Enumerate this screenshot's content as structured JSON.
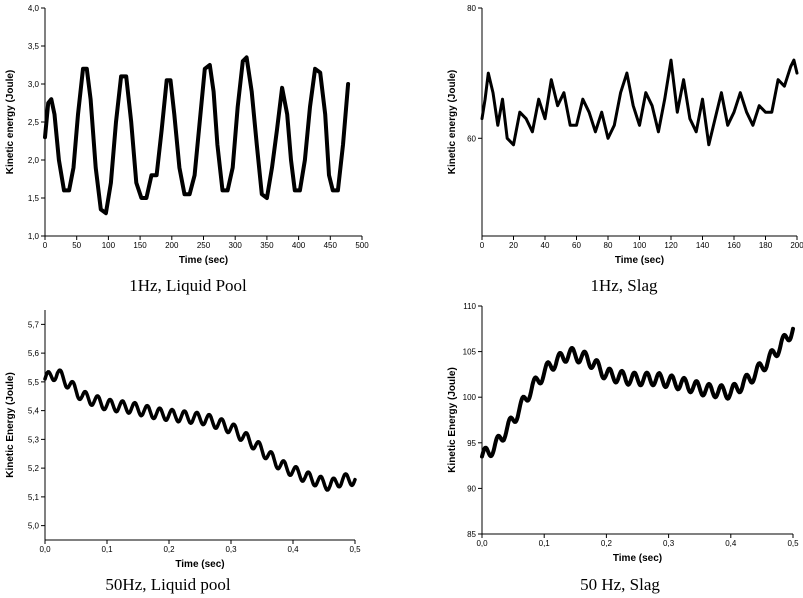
{
  "chart_data": [
    {
      "type": "line",
      "caption": "1Hz,  Liquid Pool",
      "xlabel": "Time (sec)",
      "ylabel": "Kinetic energy (Joule)",
      "xlim": [
        0,
        500
      ],
      "ylim": [
        1.0,
        4.0
      ],
      "xticks": [
        0,
        50,
        100,
        150,
        200,
        250,
        300,
        350,
        400,
        450,
        500
      ],
      "xtick_labels": [
        "0",
        "50",
        "100",
        "150",
        "200",
        "250",
        "300",
        "350",
        "400",
        "450",
        "500"
      ],
      "yticks": [
        1.0,
        1.5,
        2.0,
        2.5,
        3.0,
        3.5,
        4.0
      ],
      "ytick_labels": [
        "1,0",
        "1,5",
        "2,0",
        "2,5",
        "3,0",
        "3,5",
        "4,0"
      ],
      "line_width": 4,
      "x": [
        0,
        5,
        10,
        15,
        22,
        30,
        38,
        45,
        52,
        60,
        66,
        72,
        80,
        88,
        96,
        104,
        112,
        120,
        128,
        136,
        144,
        152,
        160,
        168,
        176,
        184,
        192,
        198,
        204,
        212,
        220,
        228,
        236,
        244,
        252,
        260,
        266,
        272,
        280,
        288,
        296,
        304,
        312,
        318,
        326,
        334,
        342,
        350,
        358,
        366,
        374,
        382,
        388,
        394,
        402,
        410,
        418,
        426,
        434,
        442,
        448,
        454,
        462,
        470,
        478
      ],
      "y": [
        2.3,
        2.75,
        2.8,
        2.6,
        2.0,
        1.6,
        1.6,
        1.9,
        2.6,
        3.2,
        3.2,
        2.8,
        1.9,
        1.35,
        1.3,
        1.7,
        2.5,
        3.1,
        3.1,
        2.5,
        1.7,
        1.5,
        1.5,
        1.8,
        1.8,
        2.4,
        3.05,
        3.05,
        2.6,
        1.9,
        1.55,
        1.55,
        1.8,
        2.5,
        3.2,
        3.25,
        2.9,
        2.2,
        1.6,
        1.6,
        1.9,
        2.7,
        3.3,
        3.35,
        2.9,
        2.2,
        1.55,
        1.5,
        1.9,
        2.4,
        2.95,
        2.6,
        2.0,
        1.6,
        1.6,
        2.0,
        2.7,
        3.2,
        3.15,
        2.6,
        1.8,
        1.6,
        1.6,
        2.2,
        3.0
      ]
    },
    {
      "type": "line",
      "caption": "1Hz, Slag",
      "xlabel": "Time (sec)",
      "ylabel": "Kinetic energy (Joule)",
      "xlim": [
        0,
        200
      ],
      "ylim": [
        45,
        80
      ],
      "xticks": [
        0,
        20,
        40,
        60,
        80,
        100,
        120,
        140,
        160,
        180,
        200
      ],
      "xtick_labels": [
        "0",
        "20",
        "40",
        "60",
        "80",
        "100",
        "120",
        "140",
        "160",
        "180",
        "200"
      ],
      "yticks": [
        60,
        80
      ],
      "ytick_labels": [
        "60",
        "80"
      ],
      "line_width": 3,
      "x": [
        0,
        2,
        4,
        7,
        10,
        13,
        16,
        20,
        24,
        28,
        32,
        36,
        40,
        44,
        48,
        52,
        56,
        60,
        64,
        68,
        72,
        76,
        80,
        84,
        88,
        92,
        96,
        100,
        104,
        108,
        112,
        116,
        120,
        124,
        128,
        132,
        136,
        140,
        144,
        148,
        152,
        156,
        160,
        164,
        168,
        172,
        176,
        180,
        184,
        188,
        192,
        196,
        198,
        200
      ],
      "y": [
        63,
        66,
        70,
        67,
        62,
        66,
        60,
        59,
        64,
        63,
        61,
        66,
        63,
        69,
        65,
        67,
        62,
        62,
        66,
        64,
        61,
        64,
        60,
        62,
        67,
        70,
        65,
        62,
        67,
        65,
        61,
        66,
        72,
        64,
        69,
        63,
        61,
        66,
        59,
        63,
        67,
        62,
        64,
        67,
        64,
        62,
        65,
        64,
        64,
        69,
        68,
        71,
        72,
        70
      ]
    },
    {
      "type": "line",
      "caption": "50Hz, Liquid pool",
      "xlabel": "Time (sec)",
      "ylabel": "Kinetic Energy (Joule)",
      "xlim": [
        0.0,
        0.5
      ],
      "ylim": [
        4.95,
        5.75
      ],
      "xticks": [
        0.0,
        0.1,
        0.2,
        0.3,
        0.4,
        0.5
      ],
      "xtick_labels": [
        "0,0",
        "0,1",
        "0,2",
        "0,3",
        "0,4",
        "0,5"
      ],
      "yticks": [
        5.0,
        5.1,
        5.2,
        5.3,
        5.4,
        5.5,
        5.6,
        5.7
      ],
      "ytick_labels": [
        "5,0",
        "5,1",
        "5,2",
        "5,3",
        "5,4",
        "5,5",
        "5,6",
        "5,7"
      ],
      "line_width": 3.5,
      "x": [
        0.0,
        0.02,
        0.06,
        0.1,
        0.14,
        0.18,
        0.22,
        0.26,
        0.3,
        0.34,
        0.38,
        0.42,
        0.46,
        0.48,
        0.5
      ],
      "y": [
        5.51,
        5.53,
        5.45,
        5.42,
        5.41,
        5.39,
        5.38,
        5.37,
        5.34,
        5.28,
        5.21,
        5.17,
        5.14,
        5.16,
        5.16
      ],
      "oscillation": {
        "period": 0.02,
        "amplitude": 0.02
      }
    },
    {
      "type": "line",
      "caption": "50 Hz, Slag",
      "xlabel": "Time (sec)",
      "ylabel": "Kinetic Energy (Joule)",
      "xlim": [
        0.0,
        0.5
      ],
      "ylim": [
        85,
        110
      ],
      "xticks": [
        0.0,
        0.1,
        0.2,
        0.3,
        0.4,
        0.5
      ],
      "xtick_labels": [
        "0,0",
        "0,1",
        "0,2",
        "0,3",
        "0,4",
        "0,5"
      ],
      "yticks": [
        85,
        90,
        95,
        100,
        105,
        110
      ],
      "ytick_labels": [
        "85",
        "90",
        "95",
        "100",
        "105",
        "110"
      ],
      "line_width": 4,
      "x": [
        0.0,
        0.02,
        0.05,
        0.08,
        0.11,
        0.14,
        0.17,
        0.2,
        0.24,
        0.28,
        0.32,
        0.36,
        0.4,
        0.43,
        0.46,
        0.49,
        0.5
      ],
      "y": [
        93.5,
        94.5,
        97.5,
        101,
        103.5,
        104.8,
        104.2,
        102.5,
        102,
        102,
        101.5,
        100.8,
        100.5,
        102,
        104,
        106.5,
        107.5
      ],
      "oscillation": {
        "period": 0.02,
        "amplitude": 0.7
      }
    }
  ]
}
